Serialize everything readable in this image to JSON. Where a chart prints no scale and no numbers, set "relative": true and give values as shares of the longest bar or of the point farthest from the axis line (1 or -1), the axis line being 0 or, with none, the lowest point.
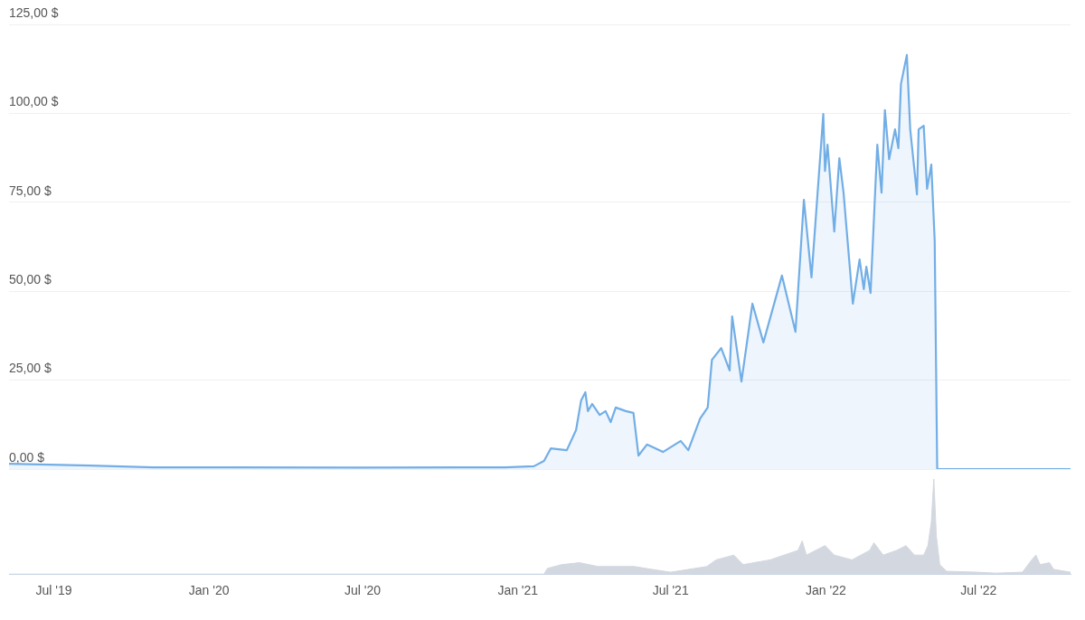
{
  "chart_data": [
    {
      "type": "area",
      "xlim": [
        "2019-05-09",
        "2022-10-18"
      ],
      "ylim": [
        0,
        125
      ],
      "yticks": [
        {
          "value": 0,
          "label": "0,00 $"
        },
        {
          "value": 25,
          "label": "25,00 $"
        },
        {
          "value": 50,
          "label": "50,00 $"
        },
        {
          "value": 75,
          "label": "75,00 $"
        },
        {
          "value": 100,
          "label": "100,00 $"
        },
        {
          "value": 125,
          "label": "125,00 $"
        }
      ],
      "grid": "y",
      "tick_labels": "y",
      "series": [
        {
          "color": "#72aee6",
          "x": [
            "2019-05-09",
            "2019-08-13",
            "2019-10-27",
            "2020-06-29",
            "2020-12-17",
            "2021-01-20",
            "2021-02-01",
            "2021-02-09",
            "2021-02-28",
            "2021-03-11",
            "2021-03-17",
            "2021-03-22",
            "2021-03-25",
            "2021-03-30",
            "2021-04-08",
            "2021-04-15",
            "2021-04-21",
            "2021-04-27",
            "2021-05-09",
            "2021-05-18",
            "2021-05-24",
            "2021-06-03",
            "2021-06-22",
            "2021-07-13",
            "2021-07-22",
            "2021-08-05",
            "2021-08-14",
            "2021-08-19",
            "2021-08-30",
            "2021-09-09",
            "2021-09-12",
            "2021-09-23",
            "2021-10-06",
            "2021-10-19",
            "2021-11-10",
            "2021-11-26",
            "2021-12-06",
            "2021-12-15",
            "2021-12-29",
            "2021-12-31",
            "2022-01-03",
            "2022-01-11",
            "2022-01-17",
            "2022-01-22",
            "2022-02-02",
            "2022-02-10",
            "2022-02-15",
            "2022-02-18",
            "2022-02-23",
            "2022-03-03",
            "2022-03-08",
            "2022-03-12",
            "2022-03-17",
            "2022-03-24",
            "2022-03-28",
            "2022-03-31",
            "2022-04-07",
            "2022-04-11",
            "2022-04-19",
            "2022-04-21",
            "2022-04-27",
            "2022-05-01",
            "2022-05-06",
            "2022-05-10",
            "2022-05-13",
            "2022-10-18"
          ],
          "values": [
            1.5,
            1,
            0.5,
            0.4,
            0.5,
            0.8,
            2.3,
            5.8,
            5.3,
            11,
            19.3,
            21.6,
            16.3,
            18.3,
            15.2,
            16.3,
            13.2,
            17.3,
            16.3,
            15.8,
            3.8,
            6.9,
            4.8,
            7.9,
            5.3,
            14.2,
            17.3,
            30.7,
            34,
            27.7,
            42.9,
            24.6,
            46.5,
            35.6,
            54.4,
            38.6,
            75.7,
            53.9,
            99.8,
            83.8,
            91.2,
            66.8,
            87.4,
            77.7,
            46.5,
            58.9,
            50.6,
            56.9,
            49.5,
            91.2,
            77.7,
            100.9,
            87.1,
            95.5,
            90.2,
            108.2,
            116.4,
            95.5,
            77.2,
            95.5,
            96.5,
            78.8,
            85.6,
            64.3,
            0,
            0
          ]
        }
      ]
    },
    {
      "type": "area",
      "xlim": [
        "2019-05-09",
        "2022-10-18"
      ],
      "relative": true,
      "tick_labels": "x",
      "xticks": [
        {
          "value": "2019-07-01",
          "label": "Jul '19"
        },
        {
          "value": "2020-01-01",
          "label": "Jan '20"
        },
        {
          "value": "2020-07-01",
          "label": "Jul '20"
        },
        {
          "value": "2021-01-01",
          "label": "Jan '21"
        },
        {
          "value": "2021-07-01",
          "label": "Jul '21"
        },
        {
          "value": "2022-01-01",
          "label": "Jan '22"
        },
        {
          "value": "2022-07-01",
          "label": "Jul '22"
        }
      ],
      "series": [
        {
          "color": "#d3d8e0",
          "x": [
            "2019-05-09",
            "2021-02-01",
            "2021-02-05",
            "2021-02-22",
            "2021-03-15",
            "2021-04-06",
            "2021-05-19",
            "2021-06-09",
            "2021-07-01",
            "2021-08-13",
            "2021-08-24",
            "2021-09-14",
            "2021-09-25",
            "2021-10-27",
            "2021-11-29",
            "2021-12-04",
            "2021-12-09",
            "2021-12-31",
            "2022-01-11",
            "2022-02-01",
            "2022-02-22",
            "2022-02-27",
            "2022-03-10",
            "2022-03-26",
            "2022-04-06",
            "2022-04-16",
            "2022-04-27",
            "2022-05-02",
            "2022-05-06",
            "2022-05-09",
            "2022-05-12",
            "2022-05-16",
            "2022-05-24",
            "2022-06-30",
            "2022-07-21",
            "2022-08-22",
            "2022-09-02",
            "2022-09-07",
            "2022-09-12",
            "2022-09-23",
            "2022-09-28",
            "2022-10-18"
          ],
          "values": [
            0,
            0,
            0.06,
            0.1,
            0.12,
            0.08,
            0.08,
            0.05,
            0.02,
            0.08,
            0.15,
            0.2,
            0.1,
            0.15,
            0.25,
            0.35,
            0.2,
            0.3,
            0.2,
            0.15,
            0.25,
            0.33,
            0.2,
            0.25,
            0.3,
            0.2,
            0.2,
            0.3,
            0.55,
            1,
            0.4,
            0.1,
            0.03,
            0.02,
            0.01,
            0.02,
            0.15,
            0.2,
            0.1,
            0.12,
            0.05,
            0.02
          ]
        }
      ]
    }
  ]
}
